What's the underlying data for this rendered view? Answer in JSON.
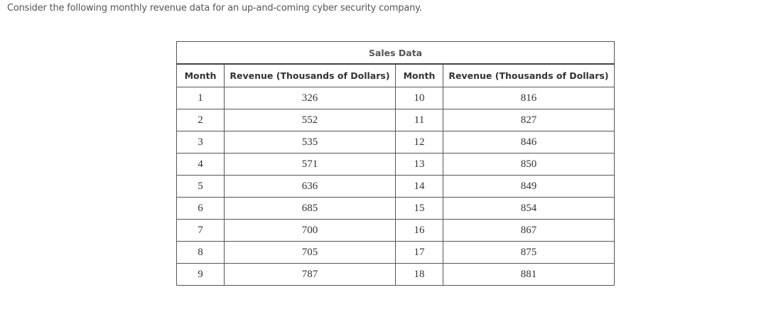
{
  "intro": "Consider the following monthly revenue data for an up-and-coming cyber security company.",
  "table": {
    "title": "Sales Data",
    "headers": [
      "Month",
      "Revenue (Thousands of Dollars)",
      "Month",
      "Revenue (Thousands of Dollars)"
    ],
    "rows": [
      [
        "1",
        "326",
        "10",
        "816"
      ],
      [
        "2",
        "552",
        "11",
        "827"
      ],
      [
        "3",
        "535",
        "12",
        "846"
      ],
      [
        "4",
        "571",
        "13",
        "850"
      ],
      [
        "5",
        "636",
        "14",
        "849"
      ],
      [
        "6",
        "685",
        "15",
        "854"
      ],
      [
        "7",
        "700",
        "16",
        "867"
      ],
      [
        "8",
        "705",
        "17",
        "875"
      ],
      [
        "9",
        "787",
        "18",
        "881"
      ]
    ]
  }
}
